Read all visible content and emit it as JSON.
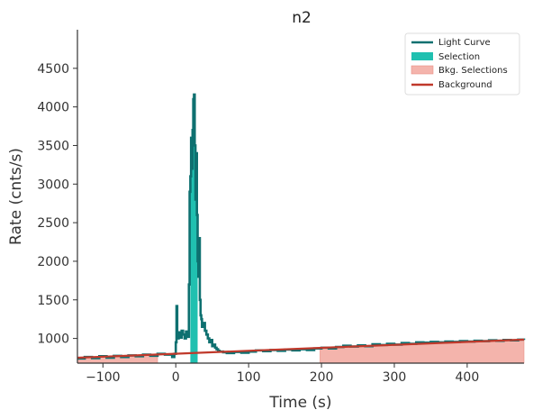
{
  "chart_data": {
    "type": "line",
    "title": "n2",
    "xlabel": "Time (s)",
    "ylabel": "Rate (cnts/s)",
    "xlim": [
      -135,
      478
    ],
    "ylim": [
      680,
      5000
    ],
    "xticks": [
      -100,
      0,
      100,
      200,
      300,
      400
    ],
    "xtick_labels": [
      "−100",
      "0",
      "100",
      "200",
      "300",
      "400"
    ],
    "yticks": [
      1000,
      1500,
      2000,
      2500,
      3000,
      3500,
      4000,
      4500
    ],
    "ytick_labels": [
      "1000",
      "1500",
      "2000",
      "2500",
      "3000",
      "3500",
      "4000",
      "4500"
    ],
    "grid": false,
    "legend_position": "top-right",
    "legend": [
      {
        "label": "Light Curve",
        "kind": "line",
        "color": "#0e7070"
      },
      {
        "label": "Selection",
        "kind": "patch",
        "color": "#20c0b0"
      },
      {
        "label": "Bkg. Selections",
        "kind": "patch",
        "color": "#f4b4ac"
      },
      {
        "label": "Background",
        "kind": "line",
        "color": "#c0392b"
      }
    ],
    "colors": {
      "light_curve": "#0e7070",
      "selection": "#20c0b0",
      "bkg_selection": "#f4b4ac",
      "background": "#c0392b"
    },
    "background_model": {
      "x": [
        -135,
        478
      ],
      "y": [
        750,
        985
      ]
    },
    "selection_interval": [
      20,
      30
    ],
    "bkg_selection_intervals": [
      [
        -135,
        -25
      ],
      [
        198,
        478
      ]
    ],
    "light_curve": {
      "x": [
        -135,
        -125,
        -115,
        -105,
        -95,
        -85,
        -75,
        -65,
        -55,
        -45,
        -35,
        -25,
        -15,
        -5,
        -2,
        0,
        1,
        2,
        4,
        6,
        8,
        10,
        12,
        14,
        16,
        18,
        19,
        20,
        21,
        22,
        23,
        24,
        25,
        26,
        27,
        28,
        29,
        30,
        31,
        32,
        33,
        34,
        35,
        36,
        38,
        40,
        42,
        44,
        46,
        48,
        50,
        52,
        54,
        56,
        58,
        60,
        65,
        70,
        80,
        90,
        100,
        110,
        120,
        130,
        140,
        150,
        160,
        170,
        180,
        190,
        200,
        210,
        220,
        230,
        240,
        250,
        260,
        270,
        280,
        290,
        300,
        310,
        320,
        330,
        340,
        350,
        360,
        370,
        380,
        390,
        400,
        410,
        420,
        430,
        440,
        450,
        460,
        470,
        478
      ],
      "y": [
        740,
        760,
        745,
        770,
        750,
        775,
        760,
        780,
        770,
        790,
        775,
        800,
        790,
        760,
        800,
        950,
        1420,
        1000,
        1080,
        1010,
        1100,
        1050,
        1000,
        1090,
        1020,
        1700,
        2900,
        3100,
        3600,
        3200,
        3700,
        4100,
        4160,
        3500,
        2800,
        3400,
        2600,
        2000,
        1800,
        2300,
        1500,
        1300,
        1250,
        1150,
        1200,
        1100,
        1050,
        1000,
        950,
        980,
        900,
        920,
        880,
        860,
        840,
        830,
        820,
        810,
        825,
        815,
        830,
        845,
        835,
        850,
        840,
        855,
        845,
        860,
        850,
        870,
        880,
        870,
        890,
        905,
        895,
        910,
        900,
        925,
        915,
        930,
        920,
        940,
        930,
        950,
        945,
        955,
        950,
        960,
        955,
        965,
        960,
        970,
        965,
        975,
        970,
        980,
        975,
        985,
        980
      ]
    }
  }
}
